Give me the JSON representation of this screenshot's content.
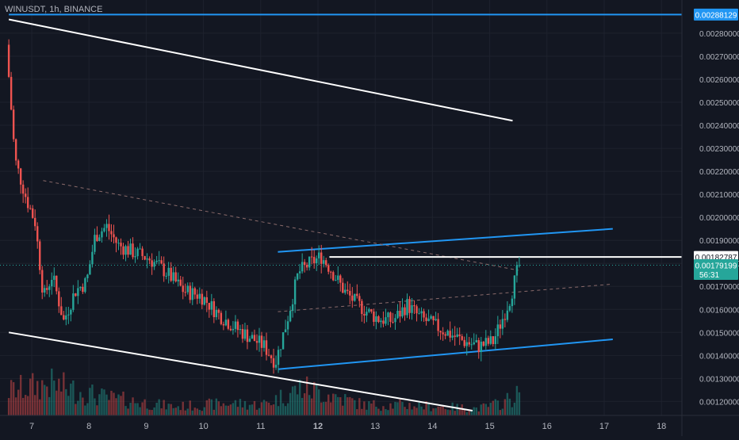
{
  "header": {
    "symbol": "WINUSDT, 1h, BINANCE"
  },
  "colors": {
    "background": "#131722",
    "grid": "#1e222d",
    "up": "#26a69a",
    "down": "#ef5350",
    "axis_text": "#b2b5be",
    "white_line": "#ffffff",
    "blue_line": "#2196f3",
    "dashed_line": "#8a6a6a"
  },
  "chart_data": {
    "type": "candlestick",
    "y_axis": {
      "min": 0.00116,
      "max": 0.00291,
      "ticks": [
        "0.00120000",
        "0.00130000",
        "0.00140000",
        "0.00150000",
        "0.00160000",
        "0.00170000",
        "0.00180000",
        "0.00190000",
        "0.00200000",
        "0.00210000",
        "0.00220000",
        "0.00230000",
        "0.00240000",
        "0.00250000",
        "0.00260000",
        "0.00270000",
        "0.00280000"
      ]
    },
    "x_axis": {
      "min_day": 6.6,
      "max_day": 18.6,
      "ticks": [
        {
          "label": "7",
          "day": 7,
          "bold": false
        },
        {
          "label": "8",
          "day": 8,
          "bold": false
        },
        {
          "label": "9",
          "day": 9,
          "bold": false
        },
        {
          "label": "10",
          "day": 10,
          "bold": false
        },
        {
          "label": "11",
          "day": 11,
          "bold": false
        },
        {
          "label": "12",
          "day": 12,
          "bold": true
        },
        {
          "label": "13",
          "day": 13,
          "bold": false
        },
        {
          "label": "14",
          "day": 14,
          "bold": false
        },
        {
          "label": "15",
          "day": 15,
          "bold": false
        },
        {
          "label": "16",
          "day": 16,
          "bold": false
        },
        {
          "label": "17",
          "day": 17,
          "bold": false
        },
        {
          "label": "18",
          "day": 18,
          "bold": false
        }
      ]
    },
    "price_path": [
      [
        6.6,
        0.00275
      ],
      [
        6.75,
        0.00225
      ],
      [
        6.95,
        0.00208
      ],
      [
        7.1,
        0.00198
      ],
      [
        7.25,
        0.00165
      ],
      [
        7.4,
        0.00175
      ],
      [
        7.6,
        0.00155
      ],
      [
        7.8,
        0.00168
      ],
      [
        8.0,
        0.00172
      ],
      [
        8.15,
        0.00192
      ],
      [
        8.35,
        0.00196
      ],
      [
        8.55,
        0.00188
      ],
      [
        8.8,
        0.00185
      ],
      [
        9.1,
        0.00182
      ],
      [
        9.4,
        0.00176
      ],
      [
        9.7,
        0.00168
      ],
      [
        10.0,
        0.00166
      ],
      [
        10.3,
        0.00158
      ],
      [
        10.6,
        0.00152
      ],
      [
        10.85,
        0.00148
      ],
      [
        11.1,
        0.00144
      ],
      [
        11.3,
        0.00137
      ],
      [
        11.5,
        0.00155
      ],
      [
        11.7,
        0.00176
      ],
      [
        11.9,
        0.0018
      ],
      [
        12.1,
        0.00183
      ],
      [
        12.25,
        0.00178
      ],
      [
        12.5,
        0.00168
      ],
      [
        12.7,
        0.00163
      ],
      [
        12.9,
        0.00159
      ],
      [
        13.1,
        0.00156
      ],
      [
        13.35,
        0.00155
      ],
      [
        13.6,
        0.00162
      ],
      [
        13.8,
        0.00157
      ],
      [
        14.0,
        0.00154
      ],
      [
        14.3,
        0.0015
      ],
      [
        14.6,
        0.00146
      ],
      [
        14.85,
        0.00144
      ],
      [
        15.1,
        0.00146
      ],
      [
        15.25,
        0.00155
      ],
      [
        15.4,
        0.00165
      ],
      [
        15.55,
        0.00179
      ]
    ],
    "volume_profile": [
      [
        6.6,
        0.7
      ],
      [
        7.3,
        0.9
      ],
      [
        8.3,
        0.5
      ],
      [
        8.8,
        0.4
      ],
      [
        9.5,
        0.25
      ],
      [
        10.5,
        0.35
      ],
      [
        11.0,
        0.3
      ],
      [
        11.4,
        0.55
      ],
      [
        11.7,
        0.8
      ],
      [
        12.2,
        0.6
      ],
      [
        12.8,
        0.3
      ],
      [
        13.5,
        0.3
      ],
      [
        14.2,
        0.25
      ],
      [
        14.8,
        0.2
      ],
      [
        15.2,
        0.35
      ],
      [
        15.5,
        0.6
      ]
    ],
    "drawn_lines": [
      {
        "name": "upper-resistance-line",
        "color": "white",
        "dash": false,
        "from": [
          6.6,
          0.00286
        ],
        "to": [
          15.4,
          0.00242
        ]
      },
      {
        "name": "lower-support-line",
        "color": "white",
        "dash": false,
        "from": [
          6.6,
          0.0015
        ],
        "to": [
          14.7,
          0.00116
        ]
      },
      {
        "name": "channel-top-line",
        "color": "blue",
        "dash": false,
        "from": [
          11.3,
          0.00185
        ],
        "to": [
          17.15,
          0.00195
        ]
      },
      {
        "name": "channel-bottom-line",
        "color": "blue",
        "dash": false,
        "from": [
          11.3,
          0.00134
        ],
        "to": [
          17.15,
          0.00147
        ]
      },
      {
        "name": "channel-mid-dashed-line",
        "color": "dashed",
        "dash": true,
        "from": [
          11.3,
          0.00159
        ],
        "to": [
          17.15,
          0.00171
        ]
      },
      {
        "name": "descending-dashed-line",
        "color": "dashed",
        "dash": true,
        "from": [
          7.2,
          0.00216
        ],
        "to": [
          15.5,
          0.00177
        ]
      },
      {
        "name": "horizontal-level-line",
        "color": "white",
        "dash": false,
        "from": [
          12.2,
          0.00182787
        ],
        "to": [
          18.6,
          0.00182787
        ]
      },
      {
        "name": "top-level-line",
        "color": "blue",
        "dash": false,
        "from": [
          6.6,
          0.00288129
        ],
        "to": [
          18.6,
          0.00288129
        ]
      }
    ],
    "price_labels": [
      {
        "name": "top-level-price-label",
        "value": 0.00288129,
        "text": "0.00288129",
        "style": "blue"
      },
      {
        "name": "level-price-label",
        "value": 0.00182787,
        "text": "0.00182787",
        "style": "white"
      },
      {
        "name": "last-price-label",
        "value": 0.00179199,
        "text": "0.00179199",
        "countdown": "56:31",
        "style": "teal"
      }
    ],
    "current_price_line": 0.00179199
  }
}
